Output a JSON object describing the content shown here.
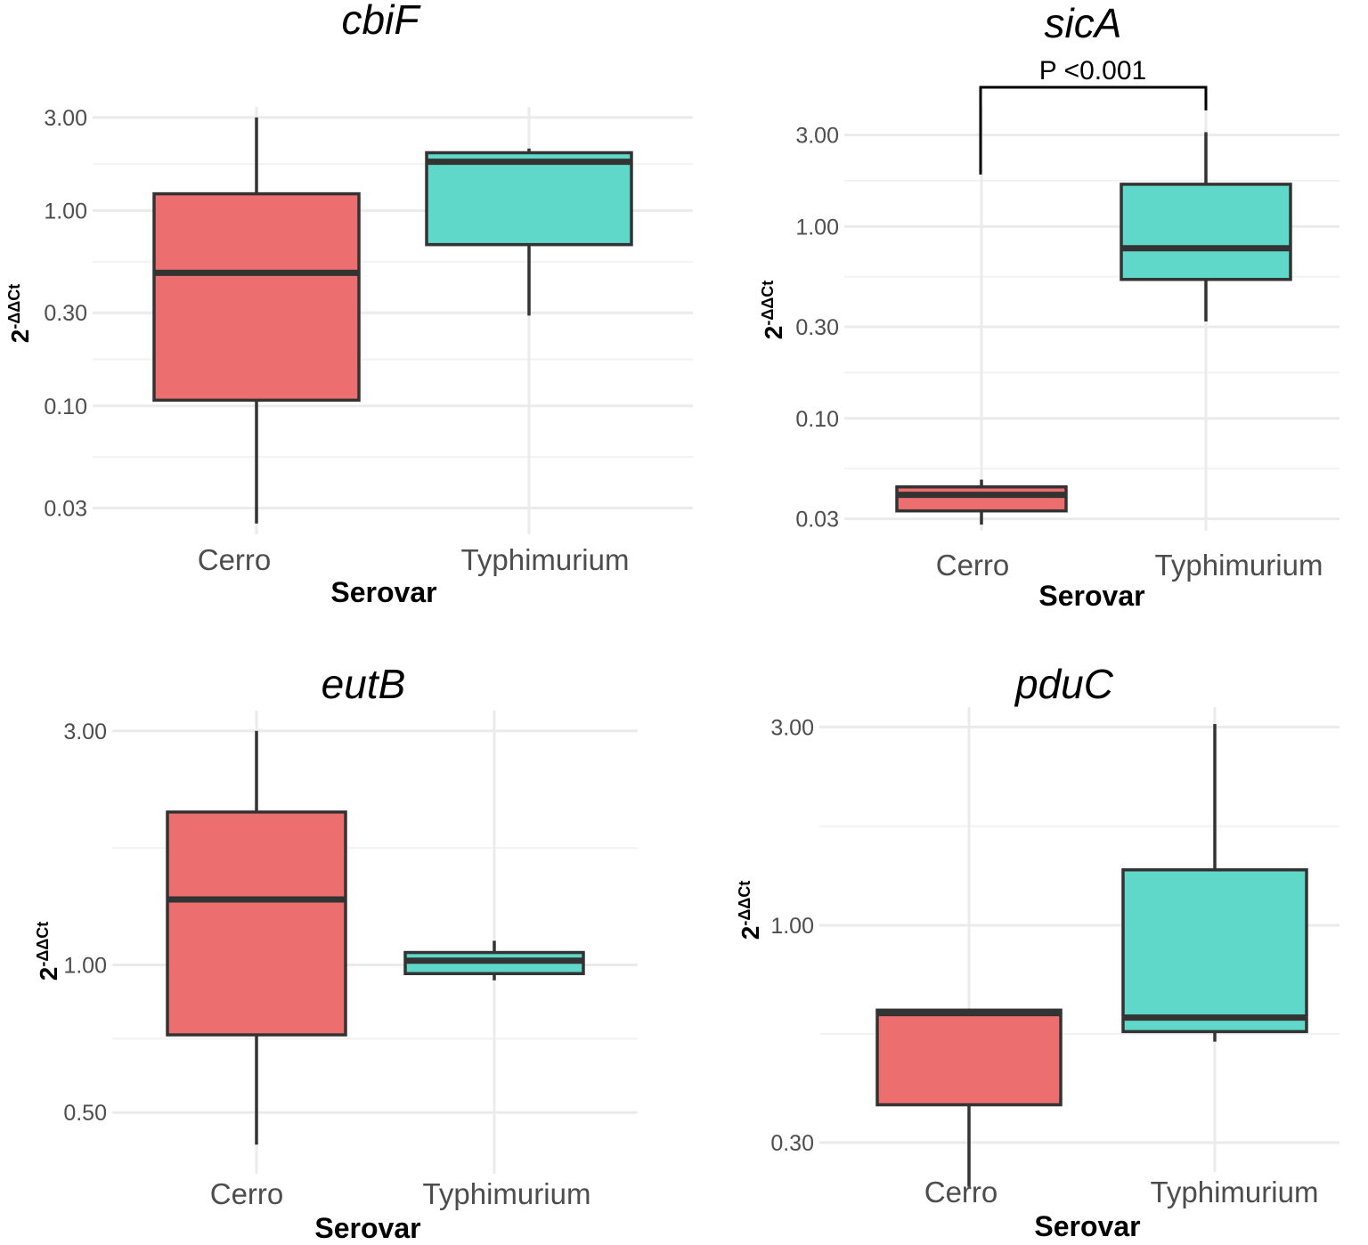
{
  "chart_data": [
    {
      "type": "boxplot",
      "title": "cbiF",
      "xlabel": "Serovar",
      "ylabel": "2",
      "ylabel_superscript": "-ΔΔCt",
      "yscale": "log",
      "ylim": [
        0.022,
        3.4
      ],
      "yticks": [
        0.03,
        0.1,
        0.3,
        1.0,
        3.0
      ],
      "ytick_labels": [
        "0.03",
        "0.10",
        "0.30",
        "1.00",
        "3.00"
      ],
      "categories": [
        "Cerro",
        "Typhimurium"
      ],
      "boxes": [
        {
          "category": "Cerro",
          "min": 0.025,
          "q1": 0.107,
          "median": 0.48,
          "q3": 1.22,
          "max": 3.0,
          "color": "#ed6e6e"
        },
        {
          "category": "Typhimurium",
          "min": 0.29,
          "q1": 0.67,
          "median": 1.78,
          "q3": 1.98,
          "max": 2.08,
          "color": "#5fd7c9"
        }
      ],
      "annotation": null
    },
    {
      "type": "boxplot",
      "title": "sicA",
      "xlabel": "Serovar",
      "ylabel": "2",
      "ylabel_superscript": "-ΔΔCt",
      "yscale": "log",
      "ylim": [
        0.026,
        4.2
      ],
      "yticks": [
        0.03,
        0.1,
        0.3,
        1.0,
        3.0
      ],
      "ytick_labels": [
        "0.03",
        "0.10",
        "0.30",
        "1.00",
        "3.00"
      ],
      "categories": [
        "Cerro",
        "Typhimurium"
      ],
      "boxes": [
        {
          "category": "Cerro",
          "min": 0.028,
          "q1": 0.033,
          "median": 0.04,
          "q3": 0.044,
          "max": 0.048,
          "color": "#ed6e6e"
        },
        {
          "category": "Typhimurium",
          "min": 0.32,
          "q1": 0.53,
          "median": 0.77,
          "q3": 1.66,
          "max": 3.1,
          "color": "#5fd7c9"
        }
      ],
      "annotation": "P <0.001"
    },
    {
      "type": "boxplot",
      "title": "eutB",
      "xlabel": "Serovar",
      "ylabel": "2",
      "ylabel_superscript": "-ΔΔCt",
      "yscale": "log",
      "ylim": [
        0.375,
        3.3
      ],
      "yticks": [
        0.5,
        1.0,
        3.0
      ],
      "ytick_labels": [
        "0.50",
        "1.00",
        "3.00"
      ],
      "categories": [
        "Cerro",
        "Typhimurium"
      ],
      "boxes": [
        {
          "category": "Cerro",
          "min": 0.43,
          "q1": 0.72,
          "median": 1.36,
          "q3": 2.05,
          "max": 3.0,
          "color": "#ed6e6e"
        },
        {
          "category": "Typhimurium",
          "min": 0.93,
          "q1": 0.96,
          "median": 1.02,
          "q3": 1.06,
          "max": 1.12,
          "color": "#5fd7c9"
        }
      ],
      "annotation": null
    },
    {
      "type": "boxplot",
      "title": "pduC",
      "xlabel": "Serovar",
      "ylabel": "2",
      "ylabel_superscript": "-ΔΔCt",
      "yscale": "log",
      "ylim": [
        0.255,
        3.35
      ],
      "yticks": [
        0.3,
        1.0,
        3.0
      ],
      "ytick_labels": [
        "0.30",
        "1.00",
        "3.00"
      ],
      "categories": [
        "Cerro",
        "Typhimurium"
      ],
      "boxes": [
        {
          "category": "Cerro",
          "min": 0.235,
          "q1": 0.37,
          "median": 0.615,
          "q3": 0.625,
          "max": 0.63,
          "color": "#ed6e6e"
        },
        {
          "category": "Typhimurium",
          "min": 0.525,
          "q1": 0.555,
          "median": 0.6,
          "q3": 1.36,
          "max": 3.05,
          "color": "#5fd7c9"
        }
      ],
      "annotation": null
    }
  ]
}
